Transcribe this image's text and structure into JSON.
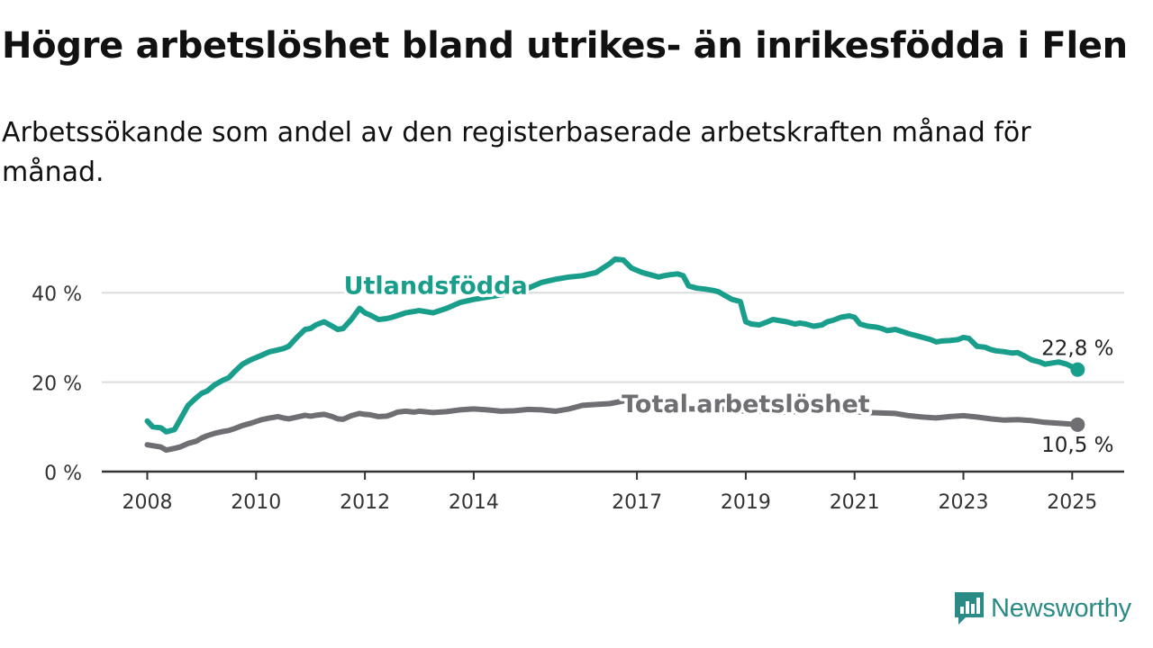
{
  "title": "Högre arbetslöshet bland utrikes- än inrikesfödda i Flen",
  "subtitle": "Arbetssökande som andel av den registerbaserade arbetskraften månad för månad.",
  "brand": {
    "name": "Newsworthy",
    "icon": "newsworthy-logo-icon"
  },
  "colors": {
    "utlandsfodda": "#1a9e8c",
    "total": "#6e6e73",
    "grid": "#dcdcdc",
    "axis": "#333333"
  },
  "chart_data": {
    "type": "line",
    "x_unit": "year",
    "xlim": [
      2008,
      2025.4
    ],
    "ylim": [
      0,
      50
    ],
    "grid": true,
    "x_ticks": [
      2008,
      2010,
      2012,
      2014,
      2017,
      2019,
      2021,
      2023,
      2025
    ],
    "x_tick_labels": [
      "2008",
      "2010",
      "2012",
      "2014",
      "2017",
      "2019",
      "2021",
      "2023",
      "2025"
    ],
    "y_ticks": [
      0,
      20,
      40
    ],
    "y_tick_labels": [
      "0 %",
      "20 %",
      "40 %"
    ],
    "series": [
      {
        "name": "Utlandsfödda",
        "label_position": [
          2013.3,
          39.7
        ],
        "end_label": "22,8 %",
        "points": [
          [
            2008.0,
            11.3
          ],
          [
            2008.1,
            10.0
          ],
          [
            2008.25,
            9.8
          ],
          [
            2008.35,
            8.9
          ],
          [
            2008.5,
            9.4
          ],
          [
            2008.6,
            11.5
          ],
          [
            2008.75,
            14.8
          ],
          [
            2008.9,
            16.5
          ],
          [
            2009.0,
            17.5
          ],
          [
            2009.1,
            18.0
          ],
          [
            2009.25,
            19.5
          ],
          [
            2009.4,
            20.5
          ],
          [
            2009.5,
            21.0
          ],
          [
            2009.6,
            22.3
          ],
          [
            2009.75,
            24.0
          ],
          [
            2009.9,
            25.0
          ],
          [
            2010.0,
            25.5
          ],
          [
            2010.1,
            26.0
          ],
          [
            2010.25,
            26.8
          ],
          [
            2010.4,
            27.2
          ],
          [
            2010.5,
            27.5
          ],
          [
            2010.6,
            28.0
          ],
          [
            2010.75,
            30.0
          ],
          [
            2010.9,
            31.8
          ],
          [
            2011.0,
            32.0
          ],
          [
            2011.1,
            32.8
          ],
          [
            2011.25,
            33.5
          ],
          [
            2011.4,
            32.5
          ],
          [
            2011.5,
            31.8
          ],
          [
            2011.6,
            32.0
          ],
          [
            2011.75,
            34.0
          ],
          [
            2011.9,
            36.5
          ],
          [
            2012.0,
            35.5
          ],
          [
            2012.1,
            35.0
          ],
          [
            2012.25,
            34.0
          ],
          [
            2012.4,
            34.2
          ],
          [
            2012.5,
            34.5
          ],
          [
            2012.75,
            35.5
          ],
          [
            2013.0,
            36.0
          ],
          [
            2013.25,
            35.5
          ],
          [
            2013.5,
            36.5
          ],
          [
            2013.75,
            37.8
          ],
          [
            2014.0,
            38.5
          ],
          [
            2014.5,
            39.5
          ],
          [
            2014.9,
            40.5
          ],
          [
            2015.0,
            41.0
          ],
          [
            2015.25,
            42.3
          ],
          [
            2015.5,
            43.0
          ],
          [
            2015.75,
            43.5
          ],
          [
            2016.0,
            43.8
          ],
          [
            2016.25,
            44.5
          ],
          [
            2016.5,
            46.5
          ],
          [
            2016.6,
            47.5
          ],
          [
            2016.75,
            47.3
          ],
          [
            2016.9,
            45.5
          ],
          [
            2017.0,
            45.0
          ],
          [
            2017.1,
            44.5
          ],
          [
            2017.25,
            44.0
          ],
          [
            2017.4,
            43.5
          ],
          [
            2017.5,
            43.8
          ],
          [
            2017.6,
            44.0
          ],
          [
            2017.75,
            44.2
          ],
          [
            2017.85,
            43.8
          ],
          [
            2017.95,
            41.5
          ],
          [
            2018.1,
            41.0
          ],
          [
            2018.25,
            40.8
          ],
          [
            2018.4,
            40.5
          ],
          [
            2018.5,
            40.2
          ],
          [
            2018.6,
            39.5
          ],
          [
            2018.75,
            38.5
          ],
          [
            2018.9,
            38.0
          ],
          [
            2019.0,
            33.5
          ],
          [
            2019.1,
            33.0
          ],
          [
            2019.25,
            32.8
          ],
          [
            2019.4,
            33.5
          ],
          [
            2019.5,
            34.0
          ],
          [
            2019.6,
            33.8
          ],
          [
            2019.75,
            33.5
          ],
          [
            2019.9,
            33.0
          ],
          [
            2020.0,
            33.2
          ],
          [
            2020.1,
            33.0
          ],
          [
            2020.25,
            32.5
          ],
          [
            2020.4,
            32.8
          ],
          [
            2020.5,
            33.5
          ],
          [
            2020.6,
            33.8
          ],
          [
            2020.75,
            34.5
          ],
          [
            2020.9,
            34.8
          ],
          [
            2021.0,
            34.5
          ],
          [
            2021.1,
            33.0
          ],
          [
            2021.25,
            32.5
          ],
          [
            2021.4,
            32.3
          ],
          [
            2021.5,
            32.0
          ],
          [
            2021.6,
            31.5
          ],
          [
            2021.75,
            31.8
          ],
          [
            2021.9,
            31.2
          ],
          [
            2022.0,
            30.8
          ],
          [
            2022.1,
            30.5
          ],
          [
            2022.25,
            30.0
          ],
          [
            2022.4,
            29.5
          ],
          [
            2022.5,
            29.0
          ],
          [
            2022.6,
            29.2
          ],
          [
            2022.75,
            29.3
          ],
          [
            2022.9,
            29.5
          ],
          [
            2023.0,
            30.0
          ],
          [
            2023.1,
            29.8
          ],
          [
            2023.25,
            28.0
          ],
          [
            2023.4,
            27.8
          ],
          [
            2023.5,
            27.3
          ],
          [
            2023.6,
            27.0
          ],
          [
            2023.75,
            26.8
          ],
          [
            2023.9,
            26.5
          ],
          [
            2024.0,
            26.6
          ],
          [
            2024.1,
            26.0
          ],
          [
            2024.25,
            25.0
          ],
          [
            2024.4,
            24.5
          ],
          [
            2024.5,
            24.0
          ],
          [
            2024.6,
            24.2
          ],
          [
            2024.75,
            24.5
          ],
          [
            2024.9,
            24.0
          ],
          [
            2025.1,
            22.8
          ]
        ]
      },
      {
        "name": "Total arbetslöshet",
        "label_position": [
          2019.0,
          13.3
        ],
        "end_label": "10,5 %",
        "points": [
          [
            2008.0,
            6.0
          ],
          [
            2008.1,
            5.8
          ],
          [
            2008.25,
            5.5
          ],
          [
            2008.35,
            4.8
          ],
          [
            2008.5,
            5.2
          ],
          [
            2008.6,
            5.5
          ],
          [
            2008.75,
            6.3
          ],
          [
            2008.9,
            6.8
          ],
          [
            2009.0,
            7.5
          ],
          [
            2009.1,
            8.0
          ],
          [
            2009.25,
            8.6
          ],
          [
            2009.4,
            9.0
          ],
          [
            2009.5,
            9.2
          ],
          [
            2009.6,
            9.6
          ],
          [
            2009.75,
            10.3
          ],
          [
            2009.9,
            10.8
          ],
          [
            2010.0,
            11.2
          ],
          [
            2010.1,
            11.6
          ],
          [
            2010.25,
            12.0
          ],
          [
            2010.4,
            12.3
          ],
          [
            2010.5,
            12.0
          ],
          [
            2010.6,
            11.8
          ],
          [
            2010.75,
            12.2
          ],
          [
            2010.9,
            12.6
          ],
          [
            2011.0,
            12.4
          ],
          [
            2011.1,
            12.6
          ],
          [
            2011.25,
            12.8
          ],
          [
            2011.4,
            12.3
          ],
          [
            2011.5,
            11.8
          ],
          [
            2011.6,
            11.7
          ],
          [
            2011.75,
            12.5
          ],
          [
            2011.9,
            13.0
          ],
          [
            2012.0,
            12.8
          ],
          [
            2012.1,
            12.7
          ],
          [
            2012.25,
            12.3
          ],
          [
            2012.4,
            12.4
          ],
          [
            2012.5,
            12.8
          ],
          [
            2012.6,
            13.3
          ],
          [
            2012.75,
            13.5
          ],
          [
            2012.9,
            13.3
          ],
          [
            2013.0,
            13.5
          ],
          [
            2013.25,
            13.2
          ],
          [
            2013.5,
            13.4
          ],
          [
            2013.75,
            13.8
          ],
          [
            2014.0,
            14.0
          ],
          [
            2014.25,
            13.8
          ],
          [
            2014.5,
            13.5
          ],
          [
            2014.75,
            13.6
          ],
          [
            2015.0,
            13.9
          ],
          [
            2015.25,
            13.8
          ],
          [
            2015.5,
            13.5
          ],
          [
            2015.75,
            14.0
          ],
          [
            2016.0,
            14.8
          ],
          [
            2016.25,
            15.0
          ],
          [
            2016.5,
            15.2
          ],
          [
            2016.75,
            15.8
          ],
          [
            2016.85,
            16.0
          ],
          [
            2017.0,
            15.5
          ],
          [
            2017.25,
            15.0
          ],
          [
            2017.5,
            14.6
          ],
          [
            2017.75,
            14.3
          ],
          [
            2018.0,
            14.0
          ],
          [
            2018.25,
            14.1
          ],
          [
            2018.5,
            14.0
          ],
          [
            2018.75,
            13.8
          ],
          [
            2019.0,
            13.5
          ],
          [
            2019.25,
            13.5
          ],
          [
            2019.5,
            13.4
          ],
          [
            2019.75,
            13.3
          ],
          [
            2020.0,
            13.5
          ],
          [
            2020.25,
            13.6
          ],
          [
            2020.5,
            13.8
          ],
          [
            2020.75,
            13.5
          ],
          [
            2021.0,
            13.4
          ],
          [
            2021.25,
            13.2
          ],
          [
            2021.5,
            13.1
          ],
          [
            2021.75,
            13.0
          ],
          [
            2022.0,
            12.5
          ],
          [
            2022.25,
            12.2
          ],
          [
            2022.5,
            12.0
          ],
          [
            2022.75,
            12.3
          ],
          [
            2023.0,
            12.5
          ],
          [
            2023.25,
            12.2
          ],
          [
            2023.5,
            11.8
          ],
          [
            2023.75,
            11.5
          ],
          [
            2024.0,
            11.6
          ],
          [
            2024.25,
            11.4
          ],
          [
            2024.5,
            11.0
          ],
          [
            2024.75,
            10.8
          ],
          [
            2025.1,
            10.5
          ]
        ]
      }
    ]
  }
}
